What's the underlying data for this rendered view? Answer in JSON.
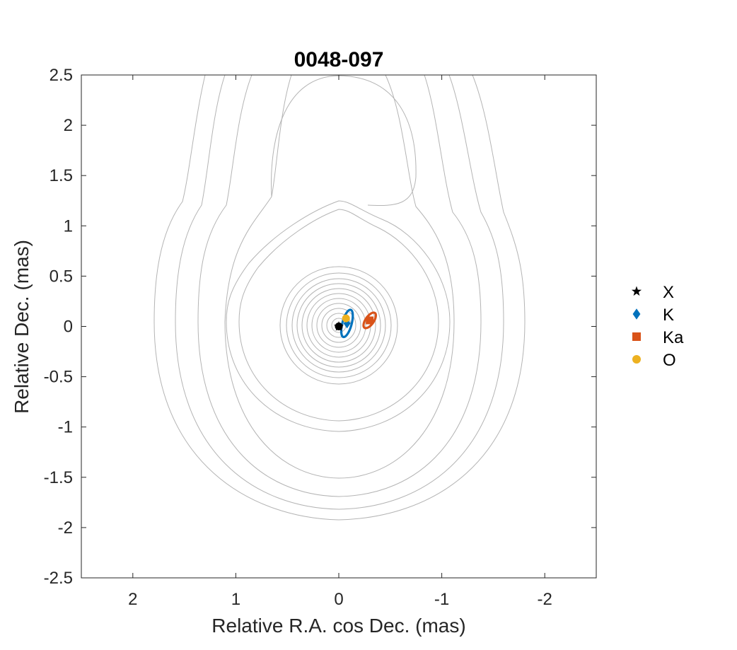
{
  "chart_data": {
    "type": "scatter",
    "title": "0048-097",
    "xlabel": "Relative R.A. cos Dec. (mas)",
    "ylabel": "Relative Dec. (mas)",
    "xlim": [
      2.5,
      -2.5
    ],
    "ylim": [
      -2.5,
      2.5
    ],
    "x_reversed": true,
    "xticks": [
      2,
      1,
      0,
      -1,
      -2
    ],
    "xtick_labels": [
      "2",
      "1",
      "0",
      "-1",
      "-2"
    ],
    "yticks": [
      2.5,
      2,
      1.5,
      1,
      0.5,
      0,
      -0.5,
      -1,
      -1.5,
      -2,
      -2.5
    ],
    "ytick_labels": [
      "2.5",
      "2",
      "1.5",
      "1",
      "0.5",
      "0",
      "-0.5",
      "-1",
      "-1.5",
      "-2",
      "-2.5"
    ],
    "grid": false,
    "legend_position": "right",
    "series": [
      {
        "name": "X",
        "marker": "star",
        "color": "#000000",
        "x": 0.0,
        "y": 0.0,
        "error_ellipse": null
      },
      {
        "name": "K",
        "marker": "diamond",
        "color": "#0072bd",
        "x": -0.08,
        "y": 0.03,
        "error_ellipse": {
          "a": 0.14,
          "b": 0.045,
          "angle_deg": 75
        }
      },
      {
        "name": "Ka",
        "marker": "square",
        "color": "#d95319",
        "x": -0.3,
        "y": 0.06,
        "error_ellipse": {
          "a": 0.09,
          "b": 0.04,
          "angle_deg": 55
        }
      },
      {
        "name": "O",
        "marker": "circle",
        "color": "#edb120",
        "x": -0.07,
        "y": 0.08,
        "error_ellipse": null
      }
    ],
    "background_contours": {
      "color": "#b4b4b4",
      "description_levels": "source brightness contours",
      "inner_radii": [
        0.07,
        0.12,
        0.17,
        0.22,
        0.27,
        0.32,
        0.37,
        0.42,
        0.47,
        0.52,
        0.58
      ]
    }
  }
}
